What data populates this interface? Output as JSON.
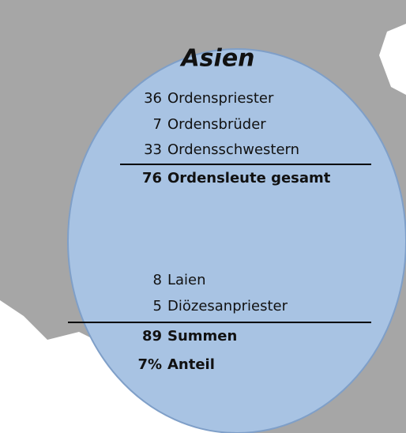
{
  "title": "Asien",
  "rows": [
    {
      "number": "36",
      "label": "Ordenspriester",
      "bold": false
    },
    {
      "number": "7",
      "label": "Ordensbrüder",
      "bold": false
    },
    {
      "number": "33",
      "label": "Ordensschwestern",
      "bold": false
    },
    {
      "number": "76",
      "label": "Ordensleute gesamt",
      "bold": true
    },
    {
      "number": "8",
      "label": "Laien",
      "bold": false
    },
    {
      "number": "5",
      "label": "Diözesanpriester",
      "bold": false
    },
    {
      "number": "89",
      "label": "Summen",
      "bold": true
    },
    {
      "number": "7%",
      "label": "Anteil",
      "bold": true
    }
  ]
}
